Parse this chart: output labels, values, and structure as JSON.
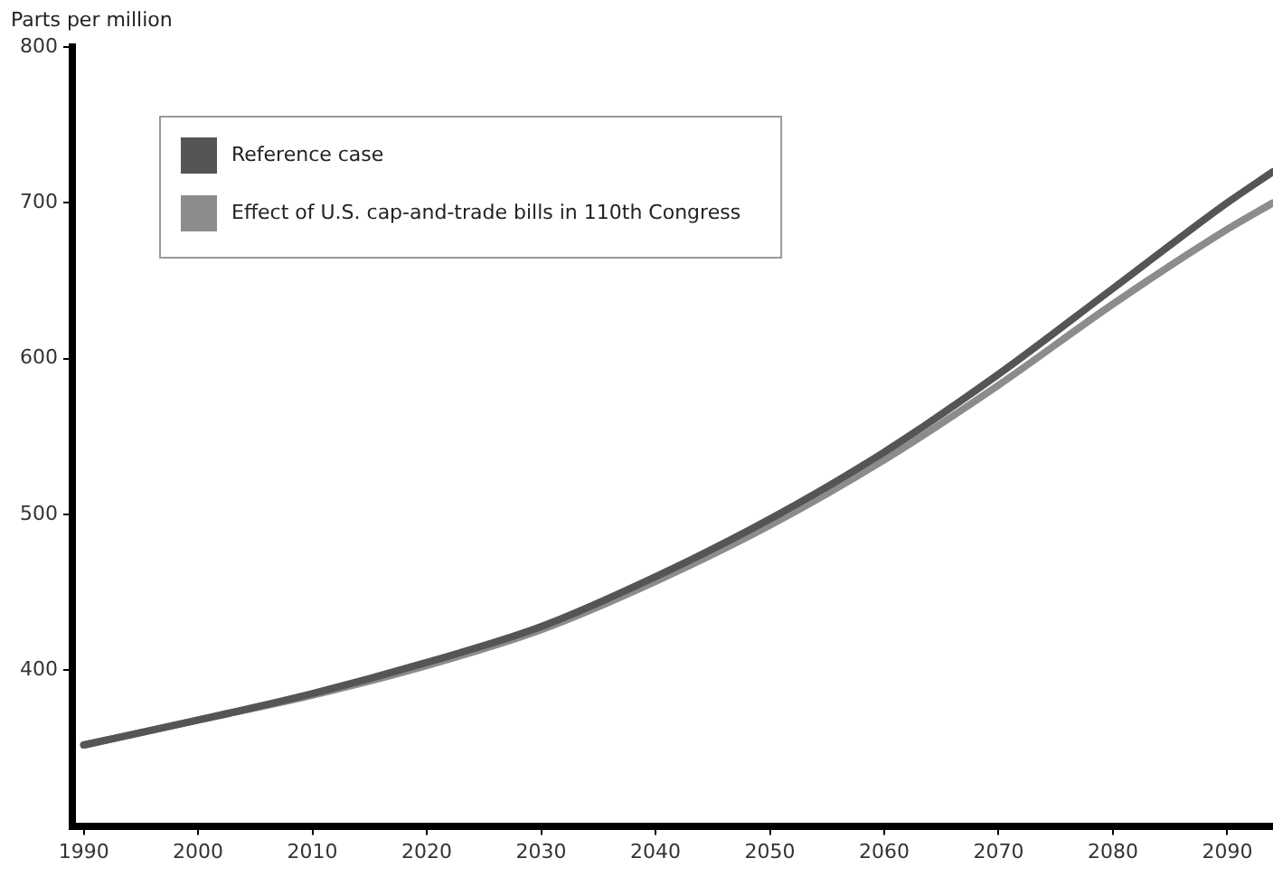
{
  "chart_data": {
    "type": "line",
    "ylabel": "Parts per million",
    "x": [
      1990,
      2000,
      2010,
      2020,
      2030,
      2040,
      2050,
      2060,
      2070,
      2080,
      2090,
      2094
    ],
    "series": [
      {
        "name": "Reference case",
        "color": "#555555",
        "values": [
          352,
          368,
          385,
          405,
          428,
          460,
          497,
          540,
          590,
          645,
          700,
          720
        ]
      },
      {
        "name": "Effect of U.S. cap-and-trade bills in 110th Congress",
        "color": "#8c8c8c",
        "values": [
          352,
          368,
          384,
          403,
          426,
          457,
          493,
          535,
          583,
          635,
          683,
          700
        ]
      }
    ],
    "xlim": [
      1989,
      2094
    ],
    "xticks": [
      1990,
      2000,
      2010,
      2020,
      2030,
      2040,
      2050,
      2060,
      2070,
      2080,
      2090
    ],
    "ylim": [
      300,
      800
    ],
    "yticks": [
      400,
      500,
      600,
      700,
      800
    ],
    "grid": false,
    "legend": "top left",
    "marker": "none",
    "line_style": "solid"
  }
}
